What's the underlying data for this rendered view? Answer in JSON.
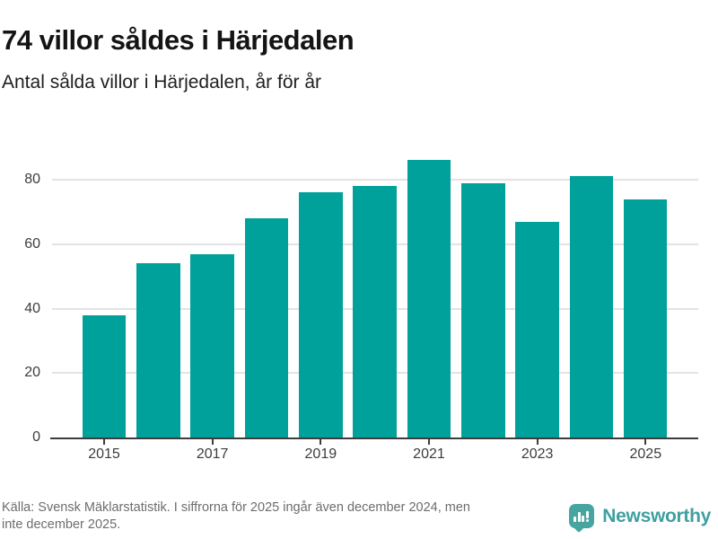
{
  "header": {
    "title": "74 villor såldes i Härjedalen",
    "subtitle": "Antal sålda villor i Härjedalen, år för år"
  },
  "chart_data": {
    "type": "bar",
    "title": "74 villor såldes i Härjedalen",
    "subtitle": "Antal sålda villor i Härjedalen, år för år",
    "categories": [
      "2015",
      "2016",
      "2017",
      "2018",
      "2019",
      "2020",
      "2021",
      "2022",
      "2023",
      "2024",
      "2025"
    ],
    "values": [
      38,
      54,
      57,
      68,
      76,
      78,
      86,
      79,
      67,
      81,
      74
    ],
    "xlabel": "",
    "ylabel": "",
    "ylim": [
      0,
      88
    ],
    "yticks": [
      0,
      20,
      40,
      60,
      80
    ],
    "xtick_labels": [
      "2015",
      "2017",
      "2019",
      "2021",
      "2023",
      "2025"
    ],
    "grid": "horizontal",
    "legend": "none",
    "bar_color": "#00a19a"
  },
  "footer": {
    "source_line1": "Källa: Svensk Mäklarstatistik. I siffrorna för 2025 ingår även december 2024, men",
    "source_line2": "inte december 2025.",
    "brand": "Newsworthy"
  },
  "colors": {
    "bar": "#00a19a",
    "axis": "#3d3d3d",
    "gridline": "#e3e3e3",
    "title_text": "#141414",
    "footer_text": "#6d6d6d",
    "brand_teal": "#3f9fa0"
  }
}
